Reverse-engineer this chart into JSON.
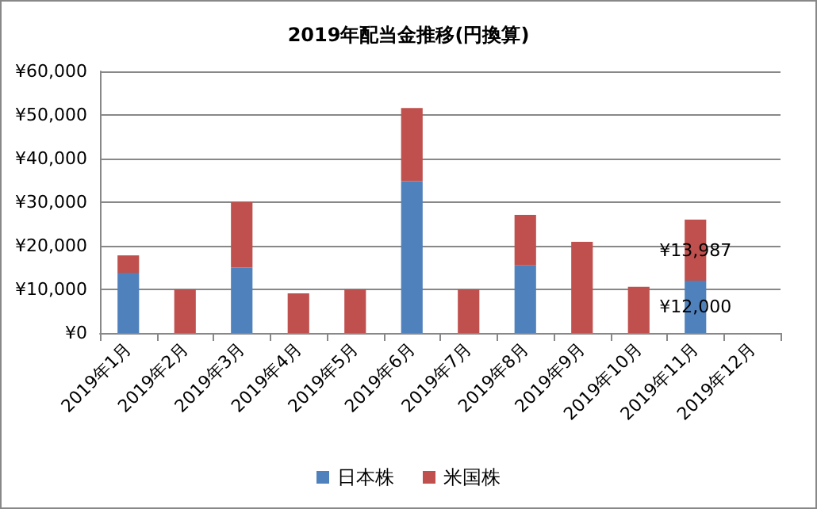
{
  "chart_data": {
    "type": "bar",
    "title": "2019年配当金推移(円換算)",
    "stacked": true,
    "categories": [
      "2019年1月",
      "2019年2月",
      "2019年3月",
      "2019年4月",
      "2019年5月",
      "2019年6月",
      "2019年7月",
      "2019年8月",
      "2019年9月",
      "2019年10月",
      "2019年11月",
      "2019年12月"
    ],
    "series": [
      {
        "name": "日本株",
        "color": "#4f81bd",
        "values": [
          13800,
          null,
          15000,
          null,
          null,
          34800,
          null,
          15500,
          null,
          null,
          12000,
          null
        ],
        "value_labels": [
          null,
          null,
          null,
          null,
          null,
          null,
          null,
          null,
          null,
          null,
          "¥12,000",
          null
        ]
      },
      {
        "name": "米国株",
        "color": "#c0504d",
        "values": [
          4000,
          10000,
          15000,
          9100,
          10000,
          16800,
          10000,
          11600,
          20900,
          10600,
          13987,
          null
        ],
        "value_labels": [
          null,
          null,
          null,
          null,
          null,
          null,
          null,
          null,
          null,
          null,
          "¥13,987",
          null
        ]
      }
    ],
    "ylim": [
      0,
      60000
    ],
    "yticks": [
      {
        "value": 0,
        "label": "¥0"
      },
      {
        "value": 10000,
        "label": "¥10,000"
      },
      {
        "value": 20000,
        "label": "¥20,000"
      },
      {
        "value": 30000,
        "label": "¥30,000"
      },
      {
        "value": 40000,
        "label": "¥40,000"
      },
      {
        "value": 50000,
        "label": "¥50,000"
      },
      {
        "value": 60000,
        "label": "¥60,000"
      }
    ],
    "grid": "y",
    "legend": "bottom"
  }
}
